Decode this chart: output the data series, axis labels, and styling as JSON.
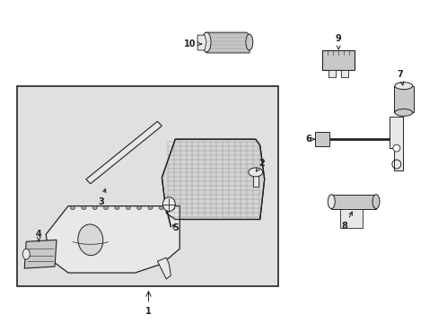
{
  "bg_color": "#ffffff",
  "box_bg": "#e0e0e0",
  "line_color": "#222222",
  "gray_part": "#c8c8c8",
  "light_part": "#e8e8e8",
  "dark_part": "#a0a0a0"
}
